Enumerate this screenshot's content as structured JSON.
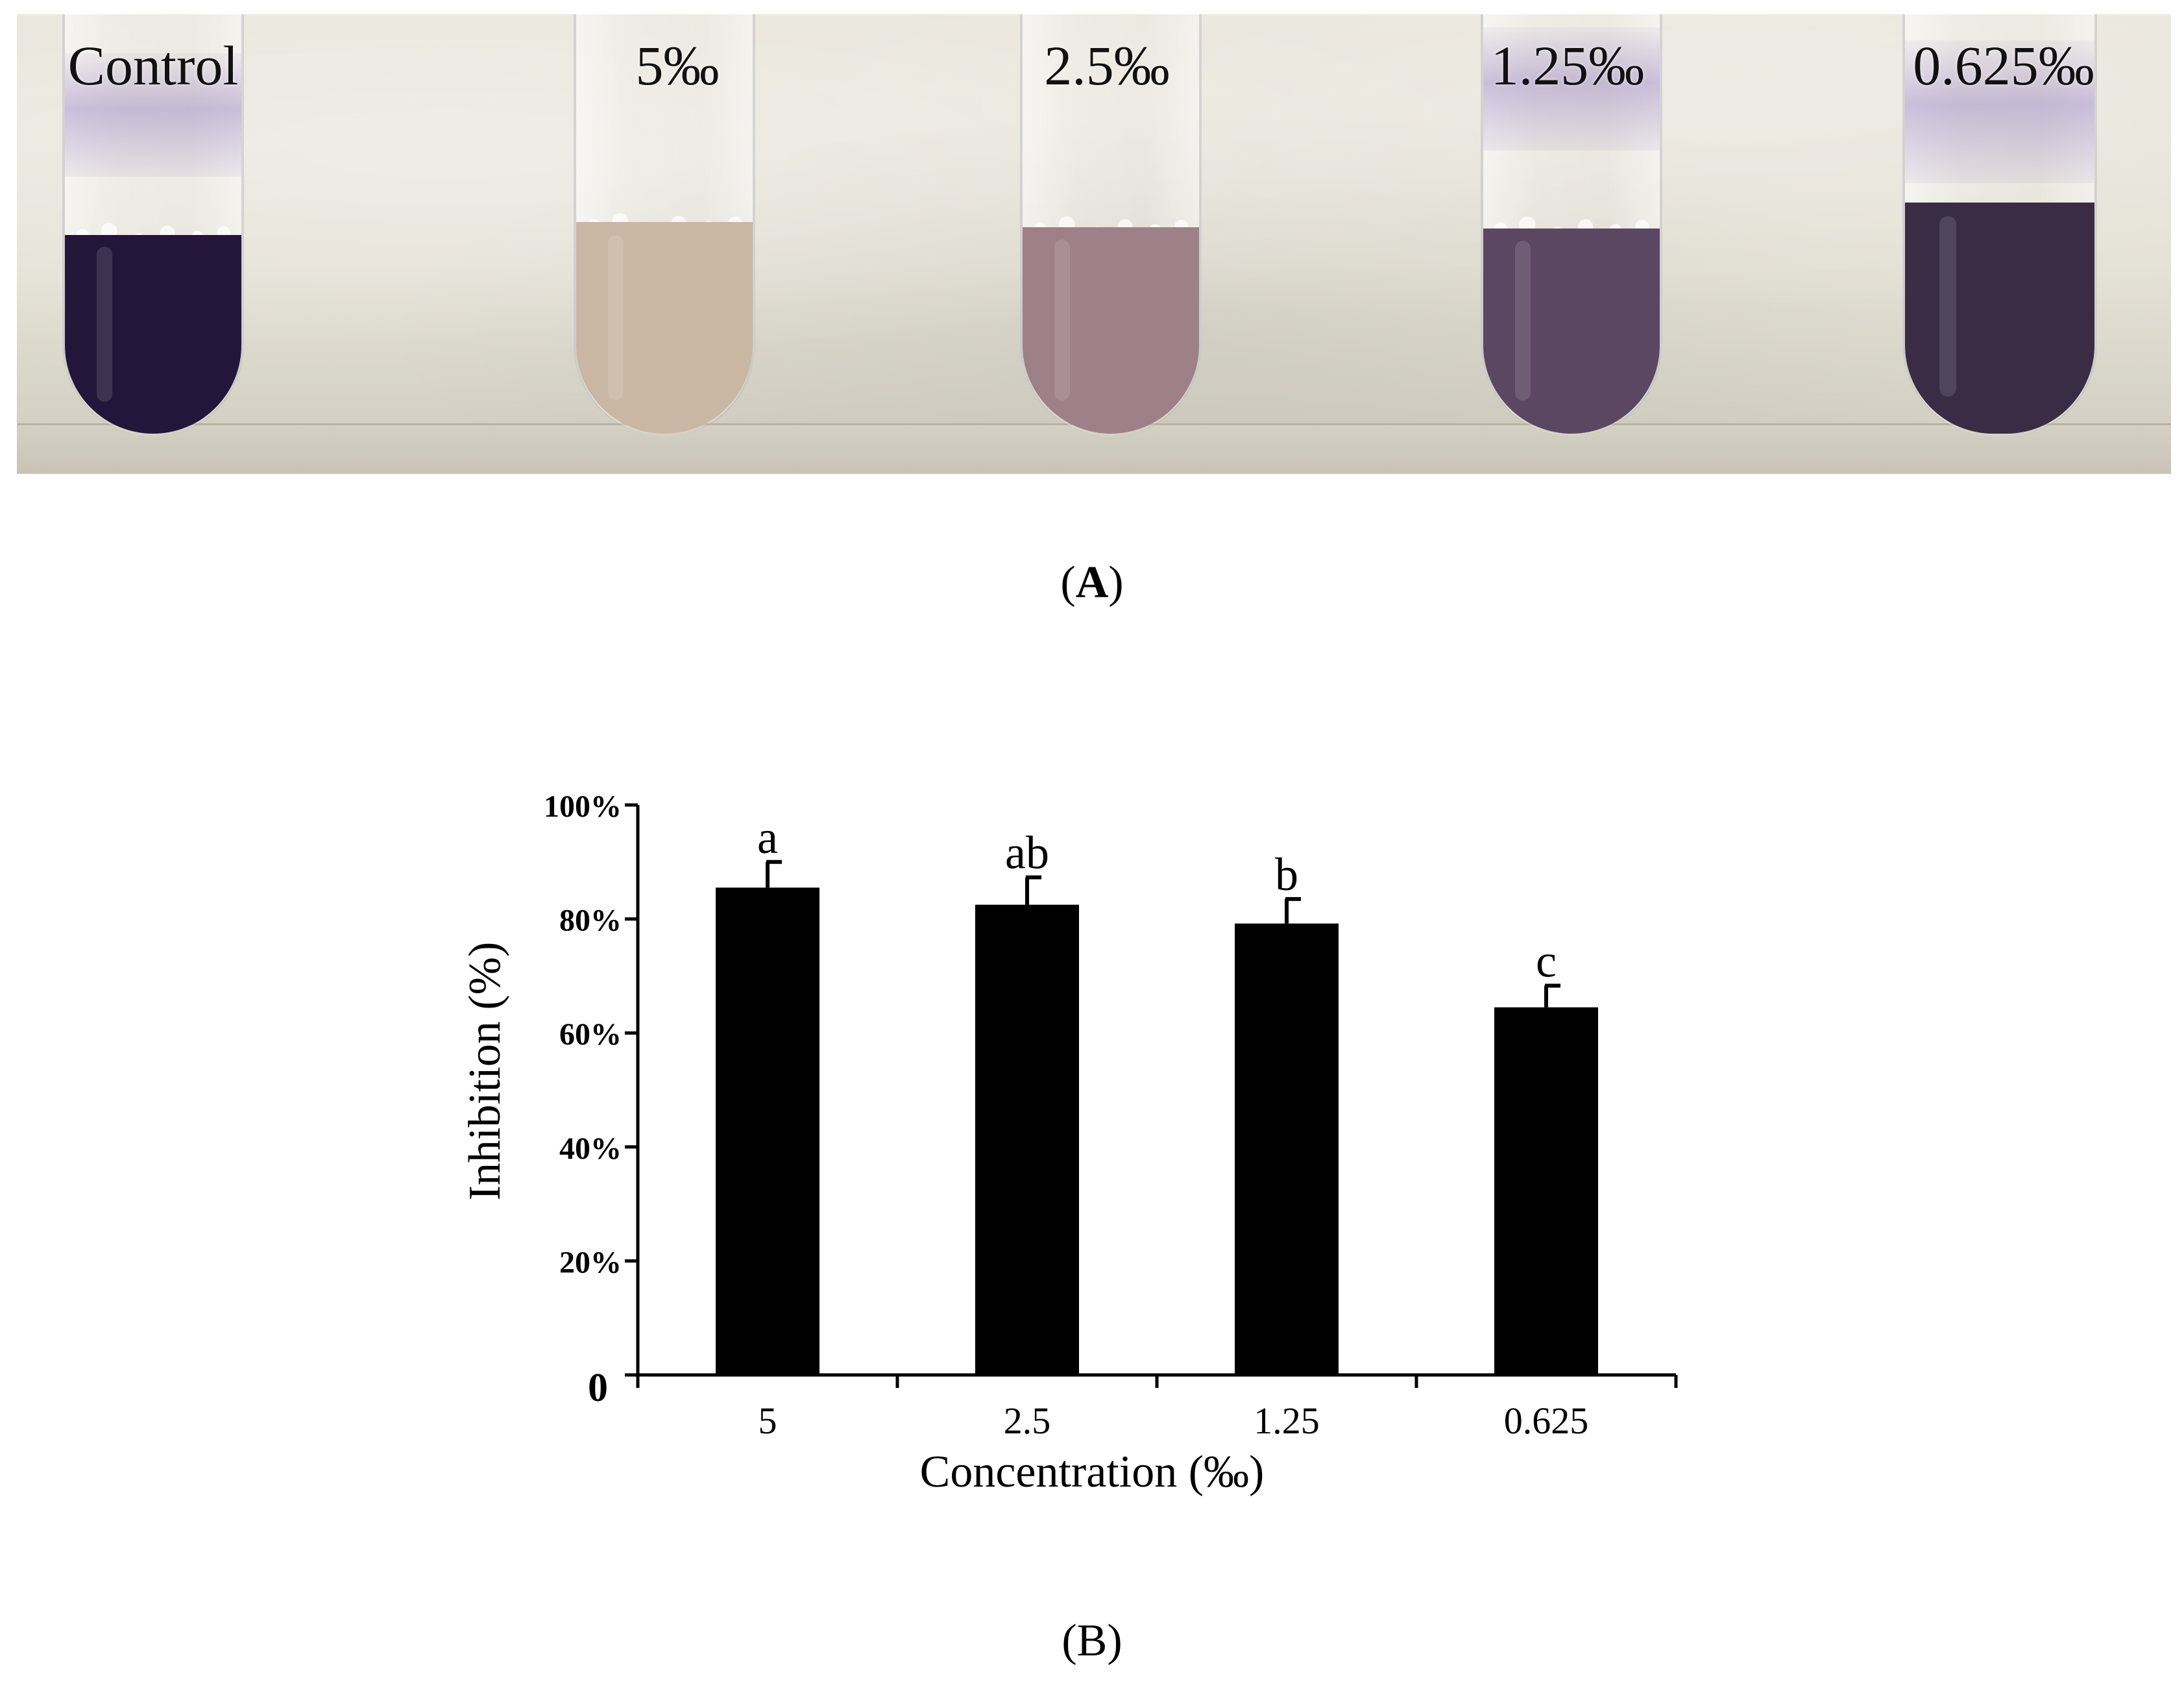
{
  "photo_panel": {
    "label_open": "(",
    "label_letter": "A",
    "label_close": ")",
    "tubes": [
      {
        "label": "Control",
        "color": "#24163a"
      },
      {
        "label": "5‰",
        "color": "#c9b7a4"
      },
      {
        "label": "2.5‰",
        "color": "#9e8088"
      },
      {
        "label": "1.25‰",
        "color": "#5c4762"
      },
      {
        "label": "0.625‰",
        "color": "#3a2c45"
      }
    ]
  },
  "chart_panel": {
    "label": "(B)"
  },
  "chart_data": {
    "type": "bar",
    "categories": [
      "5",
      "2.5",
      "1.25",
      "0.625"
    ],
    "values": [
      85.5,
      82.5,
      79.2,
      64.5
    ],
    "errors": [
      4.5,
      4.8,
      4.3,
      3.8
    ],
    "significance_letters": [
      "a",
      "ab",
      "b",
      "c"
    ],
    "xlabel": "Concentration (‰)",
    "ylabel": "Inhibition (%)",
    "ylim": [
      0,
      100
    ],
    "yticks": [
      0,
      20,
      40,
      60,
      80,
      100
    ],
    "ytick_labels": [
      "0",
      "20%",
      "40%",
      "60%",
      "80%",
      "100%"
    ],
    "bar_color": "#000000",
    "grid": false
  }
}
